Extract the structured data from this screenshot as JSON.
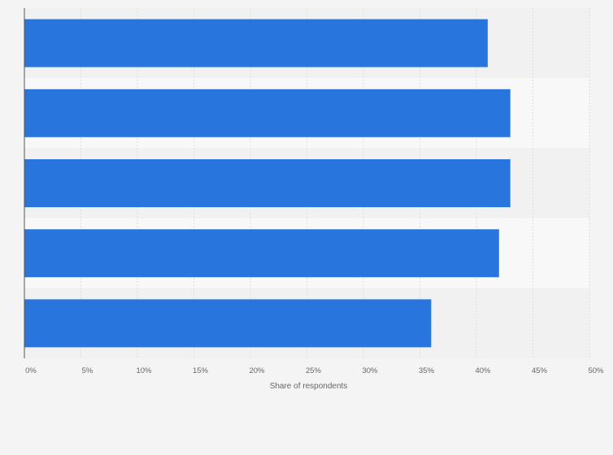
{
  "chart_data": {
    "type": "bar",
    "orientation": "horizontal",
    "categories": [
      "",
      "",
      "",
      "",
      ""
    ],
    "values": [
      41,
      43,
      43,
      42,
      36
    ],
    "xlim": [
      0,
      50
    ],
    "xticks": [
      "0%",
      "5%",
      "10%",
      "15%",
      "20%",
      "25%",
      "30%",
      "35%",
      "40%",
      "45%",
      "50%"
    ],
    "xlabel": "Share of respondents",
    "ylabel": "",
    "grid": true,
    "colors": {
      "bar": "#2876dd",
      "band_light": "#f8f8f8",
      "band_dark": "#f1f1f1",
      "grid": "#dddddd",
      "axis": "#555555"
    }
  }
}
